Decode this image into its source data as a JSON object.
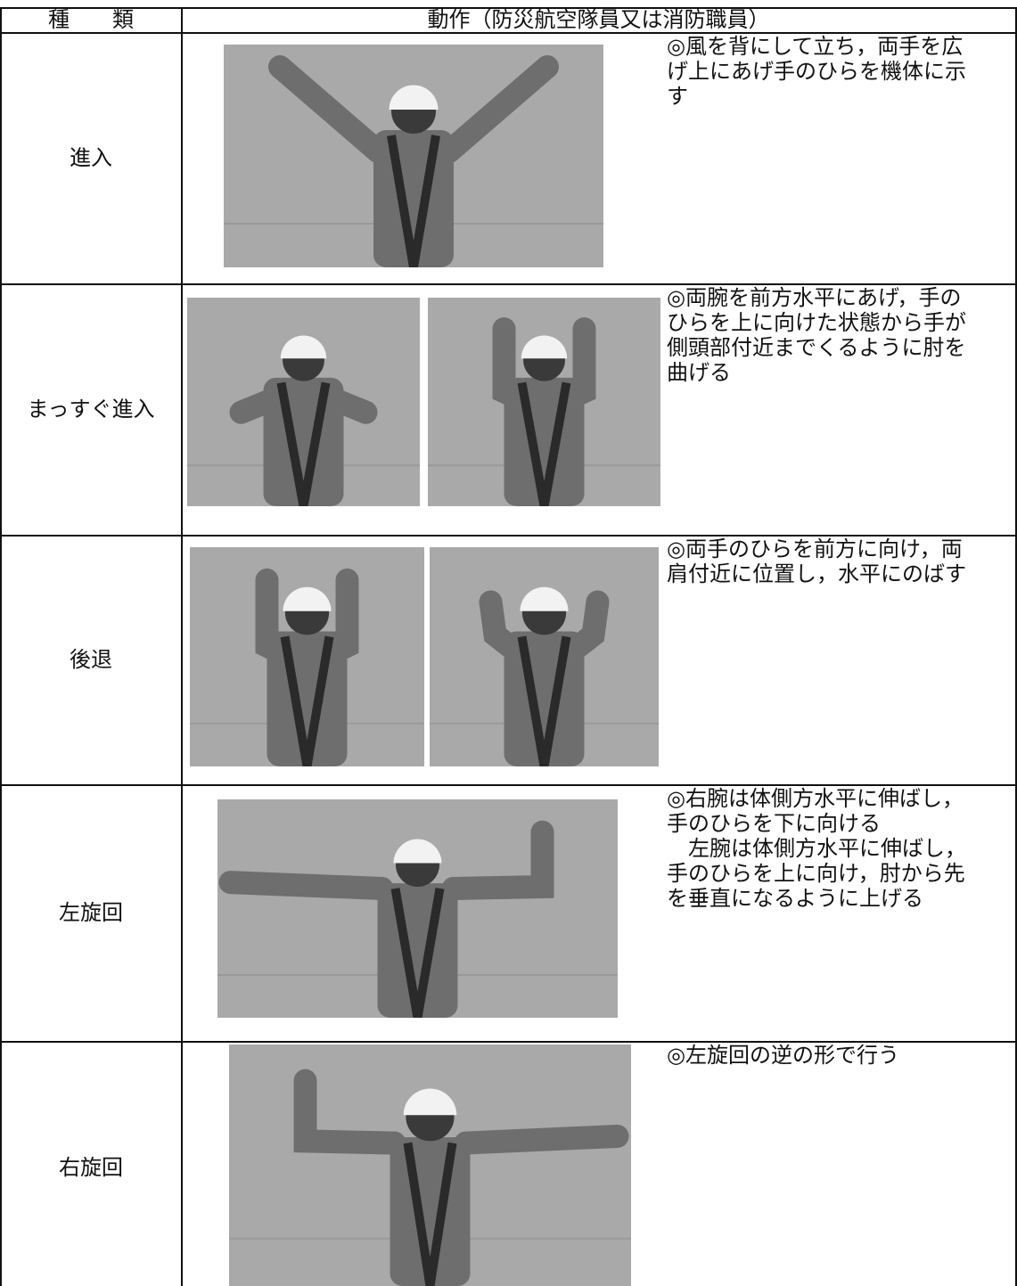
{
  "table": {
    "header": [
      "種　　類",
      "動作（防災航空隊員又は消防職員）"
    ],
    "rows": [
      {
        "type": "進入",
        "lines": [
          "◎風を背にして立ち，両手を広",
          "げ上にあげ手のひらを機体に示",
          "す"
        ]
      },
      {
        "type": "まっすぐ進入",
        "lines": [
          "◎両腕を前方水平にあげ，手の",
          "ひらを上に向けた状態から手が",
          "側頭部付近までくるように肘を",
          "曲げる"
        ]
      },
      {
        "type": "後退",
        "lines": [
          "◎両手のひらを前方に向け，両",
          "肩付近に位置し，水平にのばす"
        ]
      },
      {
        "type": "左旋回",
        "lines": [
          "◎右腕は体側方水平に伸ばし，",
          "手のひらを下に向ける",
          "　左腕は体側方水平に伸ばし，",
          "手のひらを上に向け，肘から先",
          "を垂直になるように上げる"
        ]
      },
      {
        "type": "右旋回",
        "lines": [
          "◎左旋回の逆の形で行う"
        ]
      }
    ]
  }
}
